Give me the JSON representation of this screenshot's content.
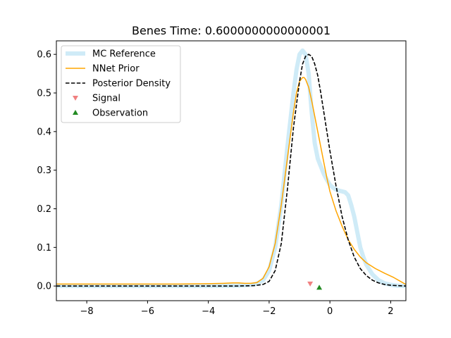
{
  "chart_data": {
    "type": "line",
    "title": "Benes Time: 0.6000000000000001",
    "xlabel": "",
    "ylabel": "",
    "xlim": [
      -9,
      2.5
    ],
    "ylim": [
      -0.038,
      0.635
    ],
    "grid": false,
    "legend_position": "top-left",
    "x_ticks": [
      -8,
      -6,
      -4,
      -2,
      0,
      2
    ],
    "x_tick_labels": [
      "−8",
      "−6",
      "−4",
      "−2",
      "0",
      "2"
    ],
    "y_ticks": [
      0.0,
      0.1,
      0.2,
      0.3,
      0.4,
      0.5,
      0.6
    ],
    "y_tick_labels": [
      "0.0",
      "0.1",
      "0.2",
      "0.3",
      "0.4",
      "0.5",
      "0.6"
    ],
    "series": [
      {
        "name": "MC Reference",
        "style": "thick-line",
        "color": "#87ceeb",
        "x": [
          -9,
          -8,
          -6,
          -4,
          -3,
          -2.6,
          -2.4,
          -2.2,
          -2.0,
          -1.8,
          -1.6,
          -1.4,
          -1.2,
          -1.1,
          -1.0,
          -0.9,
          -0.8,
          -0.7,
          -0.6,
          -0.5,
          -0.45,
          -0.4,
          -0.3,
          -0.2,
          -0.1,
          0.0,
          0.1,
          0.2,
          0.3,
          0.4,
          0.5,
          0.6,
          0.7,
          0.8,
          0.9,
          1.0,
          1.1,
          1.2,
          1.4,
          1.6,
          1.8,
          2.0,
          2.2,
          2.5
        ],
        "y": [
          0.0,
          0.0,
          0.0,
          0.0,
          0.001,
          0.003,
          0.006,
          0.015,
          0.04,
          0.1,
          0.21,
          0.36,
          0.5,
          0.56,
          0.6,
          0.61,
          0.6,
          0.55,
          0.45,
          0.37,
          0.35,
          0.33,
          0.31,
          0.29,
          0.275,
          0.262,
          0.255,
          0.25,
          0.247,
          0.245,
          0.243,
          0.235,
          0.21,
          0.18,
          0.14,
          0.1,
          0.075,
          0.055,
          0.03,
          0.015,
          0.007,
          0.003,
          0.001,
          0.0
        ]
      },
      {
        "name": "NNet Prior",
        "style": "line",
        "color": "#ffa500",
        "x": [
          -9,
          -8,
          -7,
          -6,
          -5,
          -4,
          -3.5,
          -3.2,
          -3.0,
          -2.8,
          -2.6,
          -2.4,
          -2.2,
          -2.0,
          -1.8,
          -1.6,
          -1.4,
          -1.3,
          -1.2,
          -1.1,
          -1.0,
          -0.9,
          -0.85,
          -0.8,
          -0.7,
          -0.6,
          -0.5,
          -0.4,
          -0.3,
          -0.2,
          -0.1,
          0.0,
          0.2,
          0.4,
          0.6,
          0.8,
          1.0,
          1.2,
          1.5,
          1.8,
          2.1,
          2.3,
          2.5
        ],
        "y": [
          0.005,
          0.005,
          0.005,
          0.005,
          0.005,
          0.006,
          0.007,
          0.008,
          0.008,
          0.007,
          0.007,
          0.009,
          0.02,
          0.05,
          0.11,
          0.21,
          0.33,
          0.39,
          0.45,
          0.5,
          0.53,
          0.54,
          0.54,
          0.535,
          0.515,
          0.48,
          0.44,
          0.4,
          0.36,
          0.32,
          0.28,
          0.245,
          0.195,
          0.155,
          0.12,
          0.095,
          0.075,
          0.06,
          0.045,
          0.033,
          0.022,
          0.013,
          0.004
        ]
      },
      {
        "name": "Posterior Density",
        "style": "dashed",
        "color": "#000000",
        "x": [
          -9,
          -8,
          -6,
          -4,
          -3,
          -2.5,
          -2.2,
          -2.0,
          -1.8,
          -1.6,
          -1.4,
          -1.2,
          -1.0,
          -0.9,
          -0.8,
          -0.7,
          -0.6,
          -0.5,
          -0.4,
          -0.3,
          -0.2,
          -0.1,
          0.0,
          0.2,
          0.4,
          0.6,
          0.8,
          1.0,
          1.2,
          1.4,
          1.6,
          1.8,
          2.0,
          2.2,
          2.5
        ],
        "y": [
          0.0,
          0.0,
          0.0,
          0.0,
          0.0,
          0.001,
          0.004,
          0.012,
          0.04,
          0.11,
          0.25,
          0.41,
          0.53,
          0.575,
          0.595,
          0.6,
          0.595,
          0.575,
          0.545,
          0.5,
          0.45,
          0.4,
          0.35,
          0.26,
          0.18,
          0.12,
          0.075,
          0.045,
          0.027,
          0.015,
          0.008,
          0.004,
          0.002,
          0.001,
          0.0
        ]
      }
    ],
    "markers": [
      {
        "name": "Signal",
        "shape": "triangle-down",
        "color": "#f08080",
        "x": -0.65,
        "y": 0.006
      },
      {
        "name": "Observation",
        "shape": "triangle-up",
        "color": "#228b22",
        "x": -0.35,
        "y": -0.004
      }
    ]
  }
}
